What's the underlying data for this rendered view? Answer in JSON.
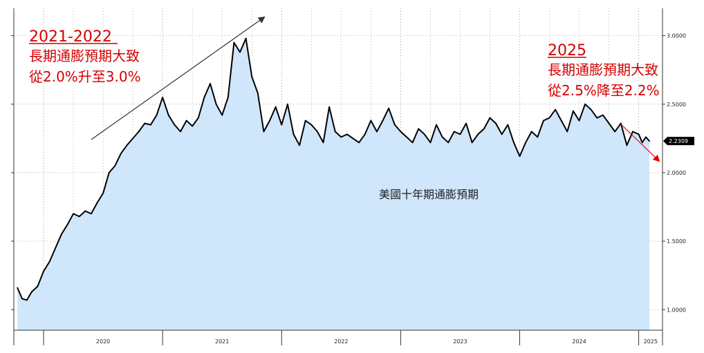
{
  "chart_data": {
    "type": "area",
    "title": "",
    "xlabel": "",
    "ylabel": "",
    "series_label": "美國十年期通膨預期",
    "x_tick_labels": [
      "2020",
      "2021",
      "2022",
      "2023",
      "2024",
      "2025"
    ],
    "y_tick_labels": [
      "3.0000",
      "2.5000",
      "2.0000",
      "1.5000",
      "1.0000"
    ],
    "y_ticks": [
      3.0,
      2.5,
      2.0,
      1.5,
      1.0
    ],
    "ylim": [
      0.85,
      3.2
    ],
    "xlim": [
      2019.75,
      2025.2
    ],
    "last_value_label": "2.2309",
    "last_value": 2.2309,
    "grid": true,
    "colors": {
      "fill": "#cfe6fb",
      "line": "#000000",
      "annotation": "#d40000",
      "arrow_up": "#333333",
      "arrow_down": "#e00000",
      "badge": "#000000"
    },
    "x": [
      2019.78,
      2019.82,
      2019.86,
      2019.9,
      2019.95,
      2020.0,
      2020.05,
      2020.1,
      2020.15,
      2020.2,
      2020.25,
      2020.3,
      2020.35,
      2020.4,
      2020.45,
      2020.5,
      2020.55,
      2020.6,
      2020.65,
      2020.7,
      2020.75,
      2020.8,
      2020.85,
      2020.9,
      2020.95,
      2021.0,
      2021.05,
      2021.1,
      2021.15,
      2021.2,
      2021.25,
      2021.3,
      2021.35,
      2021.4,
      2021.45,
      2021.5,
      2021.55,
      2021.6,
      2021.65,
      2021.7,
      2021.75,
      2021.8,
      2021.85,
      2021.9,
      2021.95,
      2022.0,
      2022.05,
      2022.1,
      2022.15,
      2022.2,
      2022.25,
      2022.3,
      2022.35,
      2022.4,
      2022.45,
      2022.5,
      2022.55,
      2022.6,
      2022.65,
      2022.7,
      2022.75,
      2022.8,
      2022.85,
      2022.9,
      2022.95,
      2023.0,
      2023.05,
      2023.1,
      2023.15,
      2023.2,
      2023.25,
      2023.3,
      2023.35,
      2023.4,
      2023.45,
      2023.5,
      2023.55,
      2023.6,
      2023.65,
      2023.7,
      2023.75,
      2023.8,
      2023.85,
      2023.9,
      2023.95,
      2024.0,
      2024.05,
      2024.1,
      2024.15,
      2024.2,
      2024.25,
      2024.3,
      2024.35,
      2024.4,
      2024.45,
      2024.5,
      2024.55,
      2024.6,
      2024.65,
      2024.7,
      2024.75,
      2024.8,
      2024.85,
      2024.9,
      2024.95,
      2025.0,
      2025.03,
      2025.06,
      2025.09
    ],
    "values": [
      1.16,
      1.08,
      1.07,
      1.13,
      1.17,
      1.28,
      1.35,
      1.45,
      1.55,
      1.62,
      1.7,
      1.68,
      1.72,
      1.7,
      1.78,
      1.85,
      2.0,
      2.05,
      2.14,
      2.2,
      2.25,
      2.3,
      2.36,
      2.35,
      2.42,
      2.55,
      2.42,
      2.35,
      2.3,
      2.38,
      2.34,
      2.4,
      2.55,
      2.65,
      2.5,
      2.42,
      2.55,
      2.95,
      2.88,
      2.98,
      2.7,
      2.58,
      2.3,
      2.38,
      2.48,
      2.35,
      2.5,
      2.28,
      2.2,
      2.38,
      2.35,
      2.3,
      2.22,
      2.48,
      2.3,
      2.26,
      2.28,
      2.25,
      2.22,
      2.28,
      2.38,
      2.3,
      2.38,
      2.47,
      2.35,
      2.3,
      2.26,
      2.22,
      2.32,
      2.28,
      2.22,
      2.35,
      2.26,
      2.22,
      2.3,
      2.28,
      2.36,
      2.22,
      2.28,
      2.32,
      2.4,
      2.36,
      2.28,
      2.35,
      2.22,
      2.12,
      2.22,
      2.3,
      2.26,
      2.38,
      2.4,
      2.46,
      2.38,
      2.3,
      2.45,
      2.38,
      2.5,
      2.46,
      2.4,
      2.42,
      2.36,
      2.3,
      2.36,
      2.2,
      2.3,
      2.28,
      2.22,
      2.26,
      2.23
    ]
  },
  "annotations": {
    "left_title": "2021-2022",
    "left_line1": "長期通膨預期大致",
    "left_line2": "從2.0%升至3.0%",
    "right_title": "2025",
    "right_line1": "長期通膨預期大致",
    "right_line2": "從2.5%降至2.2%"
  }
}
